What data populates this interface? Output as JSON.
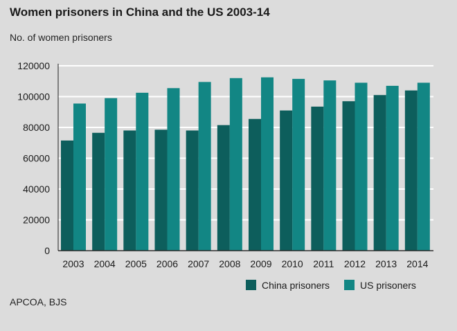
{
  "title": "Women prisoners in China and the US 2003-14",
  "subtitle": "No. of women prisoners",
  "source": "APCOA, BJS",
  "colors": {
    "background": "#dcdcdc",
    "china": "#0d5e5c",
    "us": "#128684",
    "grid": "#ffffff"
  },
  "chart_data": {
    "type": "bar",
    "title": "Women prisoners in China and the US 2003-14",
    "ylabel": "No. of women prisoners",
    "xlabel": "",
    "ylim": [
      0,
      120000
    ],
    "yticks": [
      "0",
      "20000",
      "40000",
      "60000",
      "80000",
      "100000",
      "120000"
    ],
    "grid": true,
    "legend": "bottom-right",
    "categories": [
      "2003",
      "2004",
      "2005",
      "2006",
      "2007",
      "2008",
      "2009",
      "2010",
      "2011",
      "2012",
      "2013",
      "2014"
    ],
    "series": [
      {
        "name": "China prisoners",
        "values": [
          71500,
          76500,
          78000,
          78500,
          78000,
          81500,
          85500,
          91000,
          93500,
          97000,
          101000,
          104000
        ]
      },
      {
        "name": "US prisoners",
        "values": [
          95500,
          99000,
          102500,
          105500,
          109500,
          112000,
          112500,
          111500,
          110500,
          109000,
          107000,
          109000
        ]
      }
    ]
  }
}
